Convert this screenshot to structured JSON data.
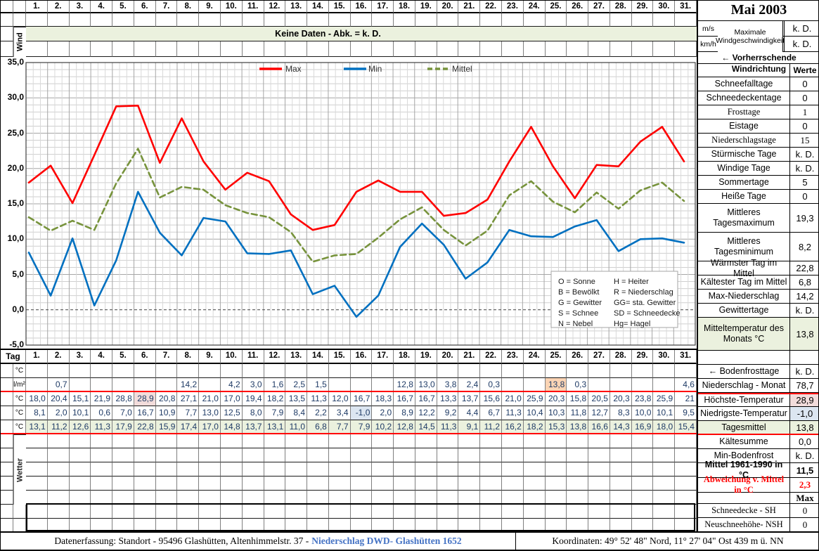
{
  "meta": {
    "month_title": "Mai 2003"
  },
  "days": [
    "1.",
    "2.",
    "3.",
    "4.",
    "5.",
    "6.",
    "7.",
    "8.",
    "9.",
    "10.",
    "11.",
    "12.",
    "13.",
    "14.",
    "15.",
    "16.",
    "17.",
    "18.",
    "19.",
    "20.",
    "21.",
    "22.",
    "23.",
    "24.",
    "25.",
    "26.",
    "27.",
    "28.",
    "29.",
    "30.",
    "31."
  ],
  "top": {
    "wind_label": "Wind",
    "no_data_banner": "Keine Daten - Abk. = k. D.",
    "wind_units": [
      "m/s",
      "km/h"
    ],
    "wind_max_label": "Maximale Windgeschwindigkeit",
    "wind_max_values": [
      "k. D.",
      "k. D."
    ],
    "wind_direction_label": "← Vorherrschende Windrichtung"
  },
  "sidebar": {
    "values_header": "Werte",
    "stats": [
      {
        "label": "Schneefalltage",
        "value": "0"
      },
      {
        "label": "Schneedeckentage",
        "value": "0"
      },
      {
        "label": "Frosttage",
        "value": "1",
        "serif": true
      },
      {
        "label": "Eistage",
        "value": "0"
      },
      {
        "label": "Niederschlagstage",
        "value": "15",
        "serif": true
      },
      {
        "label": "Stürmische Tage",
        "value": "k. D."
      },
      {
        "label": "Windige Tage",
        "value": "k. D."
      },
      {
        "label": "Sommertage",
        "value": "5"
      },
      {
        "label": "Heiße Tage",
        "value": "0"
      },
      {
        "label": "Mittleres Tagesmaximum",
        "value": "19,3",
        "tall": true
      },
      {
        "label": "Mittleres Tagesminimum",
        "value": "8,2",
        "tall": true
      },
      {
        "label": "Wärmster Tag im Mittel",
        "value": "22,8"
      },
      {
        "label": "Kältester Tag im Mittel",
        "value": "6,8"
      },
      {
        "label": "Max-Niederschlag",
        "value": "14,2"
      },
      {
        "label": "Gewittertage",
        "value": "k. D."
      },
      {
        "label": "Mitteltemperatur des Monats °C",
        "value": "13,8",
        "tall": true,
        "green": true
      }
    ],
    "summary": [
      {
        "label": "",
        "value": ""
      },
      {
        "label": "← Bodenfrosttage",
        "value": "k. D."
      },
      {
        "label": "Niederschlag - Monat",
        "value": "78,7"
      },
      {
        "label": "Höchste-Temperatur",
        "value": "28,9",
        "value_bg": "pink",
        "red_top": true
      },
      {
        "label": "Niedrigste-Temperatur",
        "value": "-1,0",
        "value_bg": "blue"
      },
      {
        "label": "Tagesmittel",
        "value": "13,8",
        "row_bg": "green",
        "red_bottom": true
      },
      {
        "label": "Kältesumme",
        "value": "0,0"
      },
      {
        "label": "Min-Bodenfrost",
        "value": "k. D."
      },
      {
        "label": "Mittel 1961-1990 in °C",
        "value": "11,5",
        "bold": true
      },
      {
        "label": "Abweichung v. Mittel in °C",
        "value": "2,3",
        "red": true,
        "serif": true,
        "bold": true
      },
      {
        "label": "",
        "value": "Max",
        "serif": true,
        "bold": true
      },
      {
        "label": "Schneedecke -   SH",
        "value": "0",
        "serif": true
      },
      {
        "label": "Neuschneehöhe- NSH",
        "value": "0",
        "serif": true
      }
    ]
  },
  "table": {
    "tag_header": "Tag",
    "rows": [
      {
        "name": "bodenfrost",
        "unit": "°C",
        "values": [
          "",
          "",
          "",
          "",
          "",
          "",
          "",
          "",
          "",
          "",
          "",
          "",
          "",
          "",
          "",
          "",
          "",
          "",
          "",
          "",
          "",
          "",
          "",
          "",
          "",
          "",
          "",
          "",
          "",
          "",
          ""
        ]
      },
      {
        "name": "niederschlag",
        "unit": "l/m²",
        "values": [
          "",
          "0,7",
          "",
          "",
          "",
          "",
          "",
          "14,2",
          "",
          "4,2",
          "3,0",
          "1,6",
          "2,5",
          "1,5",
          "",
          "",
          "",
          "12,8",
          "13,0",
          "3,8",
          "2,4",
          "0,3",
          "",
          "",
          "13,8",
          "0,3",
          "",
          "",
          "",
          "",
          "4,6"
        ],
        "highlight": {
          "24": "orange"
        }
      },
      {
        "name": "hoechste-temperatur",
        "unit": "°C",
        "values": [
          "18,0",
          "20,4",
          "15,1",
          "21,9",
          "28,8",
          "28,9",
          "20,8",
          "27,1",
          "21,0",
          "17,0",
          "19,4",
          "18,2",
          "13,5",
          "11,3",
          "12,0",
          "16,7",
          "18,3",
          "16,7",
          "16,7",
          "13,3",
          "13,7",
          "15,6",
          "21,0",
          "25,9",
          "20,3",
          "15,8",
          "20,5",
          "20,3",
          "23,8",
          "25,9",
          "21"
        ],
        "highlight": {
          "5": "pink"
        },
        "red_top": true
      },
      {
        "name": "niedrigste-temperatur",
        "unit": "°C",
        "values": [
          "8,1",
          "2,0",
          "10,1",
          "0,6",
          "7,0",
          "16,7",
          "10,9",
          "7,7",
          "13,0",
          "12,5",
          "8,0",
          "7,9",
          "8,4",
          "2,2",
          "3,4",
          "-1,0",
          "2,0",
          "8,9",
          "12,2",
          "9,2",
          "4,4",
          "6,7",
          "11,3",
          "10,4",
          "10,3",
          "11,8",
          "12,7",
          "8,3",
          "10,0",
          "10,1",
          "9,5"
        ],
        "highlight": {
          "15": "blue"
        }
      },
      {
        "name": "tagesmittel",
        "unit": "°C",
        "values": [
          "13,1",
          "11,2",
          "12,6",
          "11,3",
          "17,9",
          "22,8",
          "15,9",
          "17,4",
          "17,0",
          "14,8",
          "13,7",
          "13,1",
          "11,0",
          "6,8",
          "7,7",
          "7,9",
          "10,2",
          "12,8",
          "14,5",
          "11,3",
          "9,1",
          "11,2",
          "16,2",
          "18,2",
          "15,3",
          "13,8",
          "16,6",
          "14,3",
          "16,9",
          "18,0",
          "15,4"
        ],
        "row_bg": "green",
        "red_bottom": true
      }
    ],
    "wetter_label": "Wetter",
    "empty_rows": 7
  },
  "chart_data": {
    "type": "line",
    "title": "",
    "xlabel": "Tag",
    "ylabel": "°C",
    "x": [
      1,
      2,
      3,
      4,
      5,
      6,
      7,
      8,
      9,
      10,
      11,
      12,
      13,
      14,
      15,
      16,
      17,
      18,
      19,
      20,
      21,
      22,
      23,
      24,
      25,
      26,
      27,
      28,
      29,
      30,
      31
    ],
    "ylim": [
      -5,
      35
    ],
    "y_ticks": [
      35,
      30,
      25,
      20,
      15,
      10,
      5,
      0,
      -5
    ],
    "grid": true,
    "legend_position": "top-center",
    "series": [
      {
        "name": "Max",
        "color": "#FF0000",
        "style": "solid",
        "values": [
          18.0,
          20.4,
          15.1,
          21.9,
          28.8,
          28.9,
          20.8,
          27.1,
          21.0,
          17.0,
          19.4,
          18.2,
          13.5,
          11.3,
          12.0,
          16.7,
          18.3,
          16.7,
          16.7,
          13.3,
          13.7,
          15.6,
          21.0,
          25.9,
          20.3,
          15.8,
          20.5,
          20.3,
          23.8,
          25.9,
          21.0
        ]
      },
      {
        "name": "Min",
        "color": "#0070C0",
        "style": "solid",
        "values": [
          8.1,
          2.0,
          10.1,
          0.6,
          7.0,
          16.7,
          10.9,
          7.7,
          13.0,
          12.5,
          8.0,
          7.9,
          8.4,
          2.2,
          3.4,
          -1.0,
          2.0,
          8.9,
          12.2,
          9.2,
          4.4,
          6.7,
          11.3,
          10.4,
          10.3,
          11.8,
          12.7,
          8.3,
          10.0,
          10.1,
          9.5
        ]
      },
      {
        "name": "Mittel",
        "color": "#77933C",
        "style": "dashed",
        "values": [
          13.1,
          11.2,
          12.6,
          11.3,
          17.9,
          22.8,
          15.9,
          17.4,
          17.0,
          14.8,
          13.7,
          13.1,
          11.0,
          6.8,
          7.7,
          7.9,
          10.2,
          12.8,
          14.5,
          11.3,
          9.1,
          11.2,
          16.2,
          18.2,
          15.3,
          13.8,
          16.6,
          14.3,
          16.9,
          18.0,
          15.4
        ]
      }
    ],
    "annotation_box": {
      "left": [
        "O = Sonne",
        "B = Bewölkt",
        "G = Gewitter",
        "S = Schnee",
        "N = Nebel"
      ],
      "right": [
        "H = Heiter",
        "R = Niederschlag",
        "GG= sta. Gewitter",
        "SD = Schneedecke",
        "Hg= Hagel"
      ]
    }
  },
  "footer": {
    "left_prefix": "Datenerfassung:  Standort -  95496  Glashütten, Altenhimmelstr. 37 -",
    "left_link": "Niederschlag DWD- Glashütten 1652",
    "right": "Koordinaten:  49° 52' 48\" Nord,   11° 27' 04\" Ost   439 m ü. NN"
  }
}
